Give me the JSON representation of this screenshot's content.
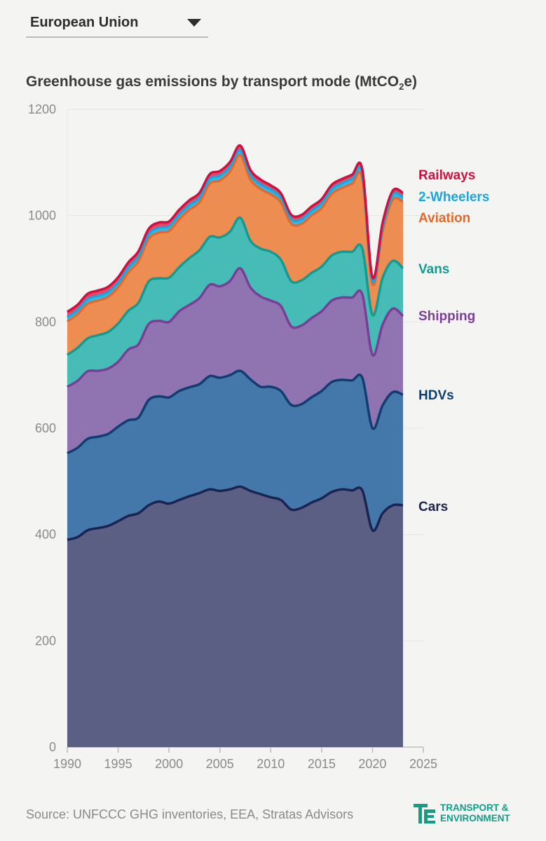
{
  "selector": {
    "value": "European Union"
  },
  "title": "Greenhouse gas emissions by transport mode (MtCO",
  "title_sub": "2",
  "title_end": "e)",
  "source": "Source: UNFCCC GHG inventories, EEA, Stratas Advisors",
  "logo": {
    "line1": "TRANSPORT &",
    "line2": "ENVIRONMENT"
  },
  "colors": {
    "background": "#f4f4f3",
    "cars": "#5a5f83",
    "cars_line": "#1b2350",
    "hdvs": "#4578aa",
    "hdvs_line": "#0e3f73",
    "shipping": "#9073b1",
    "shipping_line": "#7a3e98",
    "vans": "#47bcb6",
    "vans_line": "#109b94",
    "aviation": "#ee8d52",
    "aviation_line": "#e3692d",
    "two_wheelers": "#34b8e5",
    "two_wheelers_line": "#1aa6dd",
    "railways": "#e84466",
    "railways_line": "#cf1040",
    "brand": "#0f9f86"
  },
  "chart_data": {
    "type": "area",
    "stacked": true,
    "x": [
      1990,
      1991,
      1992,
      1993,
      1994,
      1995,
      1996,
      1997,
      1998,
      1999,
      2000,
      2001,
      2002,
      2003,
      2004,
      2005,
      2006,
      2007,
      2008,
      2009,
      2010,
      2011,
      2012,
      2013,
      2014,
      2015,
      2016,
      2017,
      2018,
      2019,
      2020,
      2021,
      2022,
      2023
    ],
    "xlim": [
      1990,
      2025
    ],
    "ylim": [
      0,
      1200
    ],
    "xticks": [
      1990,
      1995,
      2000,
      2005,
      2010,
      2015,
      2020,
      2025
    ],
    "yticks": [
      0,
      200,
      400,
      600,
      800,
      1000,
      1200
    ],
    "grid": true,
    "legend": "direct labels at right end",
    "series": [
      {
        "name": "Cars",
        "key": "cars",
        "values": [
          390,
          395,
          408,
          412,
          416,
          425,
          435,
          440,
          455,
          462,
          458,
          465,
          472,
          478,
          485,
          482,
          485,
          490,
          482,
          476,
          470,
          465,
          447,
          450,
          460,
          468,
          480,
          485,
          483,
          483,
          408,
          440,
          455,
          455
        ]
      },
      {
        "name": "HDVs",
        "key": "hdvs",
        "values": [
          163,
          168,
          172,
          172,
          173,
          178,
          180,
          180,
          198,
          198,
          200,
          205,
          205,
          205,
          213,
          213,
          215,
          218,
          210,
          202,
          208,
          205,
          197,
          195,
          198,
          202,
          207,
          206,
          207,
          212,
          192,
          203,
          213,
          208
        ]
      },
      {
        "name": "Shipping",
        "key": "shipping",
        "values": [
          125,
          126,
          127,
          124,
          123,
          122,
          133,
          138,
          143,
          142,
          142,
          150,
          155,
          162,
          172,
          172,
          177,
          193,
          173,
          170,
          162,
          160,
          148,
          148,
          149,
          150,
          153,
          155,
          156,
          157,
          138,
          152,
          157,
          148
        ]
      },
      {
        "name": "Vans",
        "key": "vans",
        "values": [
          60,
          62,
          62,
          67,
          69,
          72,
          73,
          78,
          80,
          80,
          83,
          83,
          88,
          90,
          90,
          92,
          93,
          95,
          88,
          90,
          92,
          87,
          85,
          85,
          85,
          84,
          85,
          86,
          86,
          86,
          75,
          88,
          90,
          90
        ]
      },
      {
        "name": "Aviation",
        "key": "aviation",
        "values": [
          63,
          63,
          65,
          65,
          66,
          68,
          72,
          78,
          80,
          86,
          88,
          90,
          91,
          90,
          100,
          107,
          113,
          118,
          115,
          112,
          108,
          108,
          108,
          106,
          108,
          110,
          116,
          120,
          128,
          132,
          58,
          88,
          115,
          125
        ]
      },
      {
        "name": "2-Wheelers",
        "key": "two_wheelers",
        "values": [
          8,
          8,
          9,
          9,
          9,
          9,
          9,
          9,
          9,
          9,
          9,
          9,
          9,
          9,
          9,
          9,
          9,
          9,
          9,
          9,
          9,
          9,
          9,
          9,
          9,
          9,
          9,
          9,
          9,
          9,
          6,
          8,
          9,
          9
        ]
      },
      {
        "name": "Railways",
        "key": "railways",
        "values": [
          10,
          10,
          10,
          10,
          10,
          10,
          10,
          10,
          10,
          10,
          9,
          9,
          9,
          9,
          9,
          9,
          9,
          9,
          9,
          9,
          8,
          8,
          8,
          8,
          8,
          8,
          8,
          8,
          8,
          8,
          7,
          8,
          8,
          8
        ]
      }
    ]
  }
}
